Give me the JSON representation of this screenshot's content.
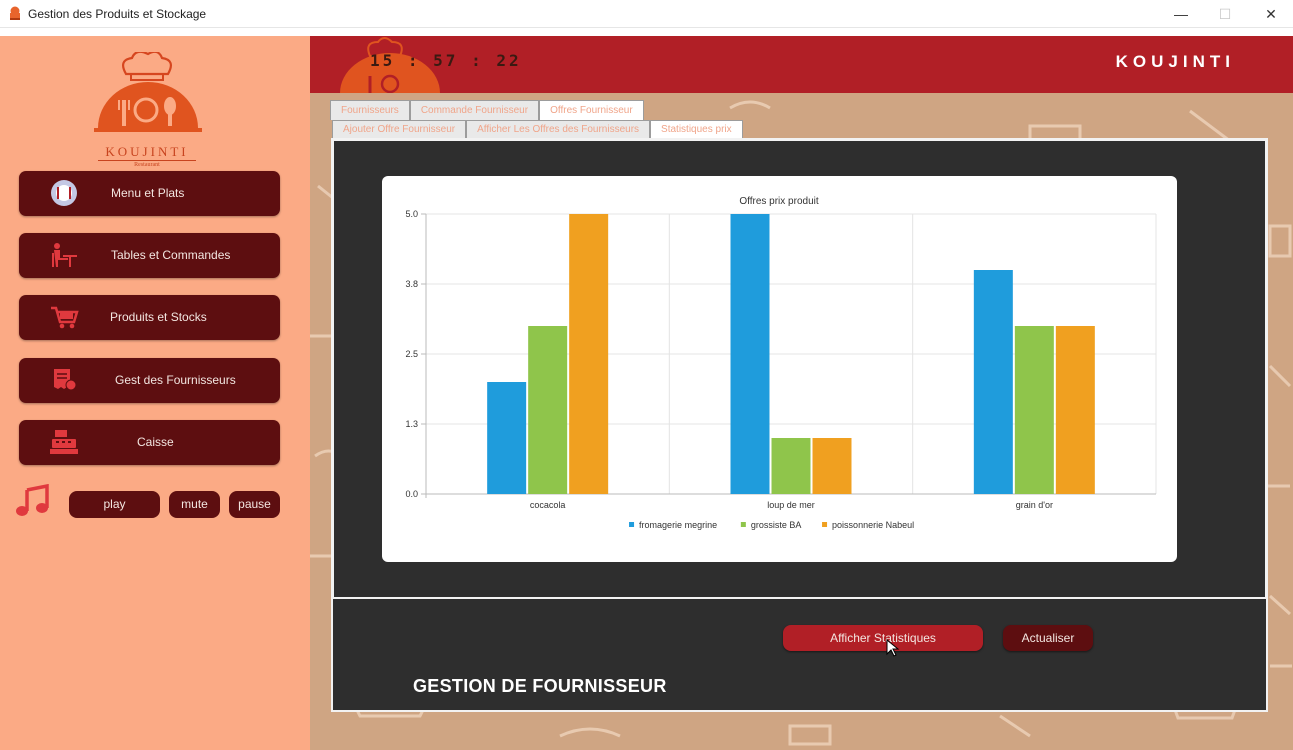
{
  "window": {
    "title": "Gestion des Produits et Stockage",
    "minimize": "—",
    "maximize": "☐",
    "close": "✕"
  },
  "header": {
    "clock": "15 : 57 : 22",
    "brand": "KOUJINTI"
  },
  "logo": {
    "name": "KOUJINTI",
    "subtitle": "Restaurant"
  },
  "sidebar": {
    "items": [
      {
        "label": "Menu et Plats",
        "icon": "plate-icon"
      },
      {
        "label": "Tables et Commandes",
        "icon": "table-chair-icon"
      },
      {
        "label": "Produits et Stocks",
        "icon": "cart-icon"
      },
      {
        "label": "Gest des Fournisseurs",
        "icon": "receipt-icon"
      },
      {
        "label": "Caisse",
        "icon": "cash-register-icon"
      }
    ],
    "media": {
      "icon": "music-note-icon",
      "play": "play",
      "mute": "mute",
      "pause": "pause"
    }
  },
  "tabs": {
    "main": [
      {
        "label": "Fournisseurs",
        "active": false
      },
      {
        "label": "Commande Fournisseur",
        "active": false
      },
      {
        "label": "Offres Fournisseur",
        "active": true
      }
    ],
    "sub": [
      {
        "label": "Ajouter Offre Fournisseur",
        "active": false
      },
      {
        "label": "Afficher Les Offres des Fournisseurs",
        "active": false
      },
      {
        "label": "Statistiques prix",
        "active": true
      }
    ]
  },
  "chart_data": {
    "type": "bar",
    "title": "Offres prix produit",
    "categories": [
      "cocacola",
      "loup de mer",
      "grain d'or"
    ],
    "series": [
      {
        "name": "fromagerie megrine",
        "color": "#1f9cdc",
        "values": [
          2,
          5,
          4
        ]
      },
      {
        "name": "grossiste BA",
        "color": "#8fc54b",
        "values": [
          3,
          1,
          3
        ]
      },
      {
        "name": "poissonnerie Nabeul",
        "color": "#f0a020",
        "values": [
          5,
          1,
          3
        ]
      }
    ],
    "yticks": [
      "0.0",
      "1.3",
      "2.5",
      "3.8",
      "5.0"
    ],
    "ylim": [
      0,
      5
    ],
    "xlabel": "",
    "ylabel": "",
    "legend": "bottom",
    "grid": true
  },
  "actions": {
    "afficher": "Afficher Statistiques",
    "actualiser": "Actualiser"
  },
  "section_title": "GESTION DE FOURNISSEUR"
}
